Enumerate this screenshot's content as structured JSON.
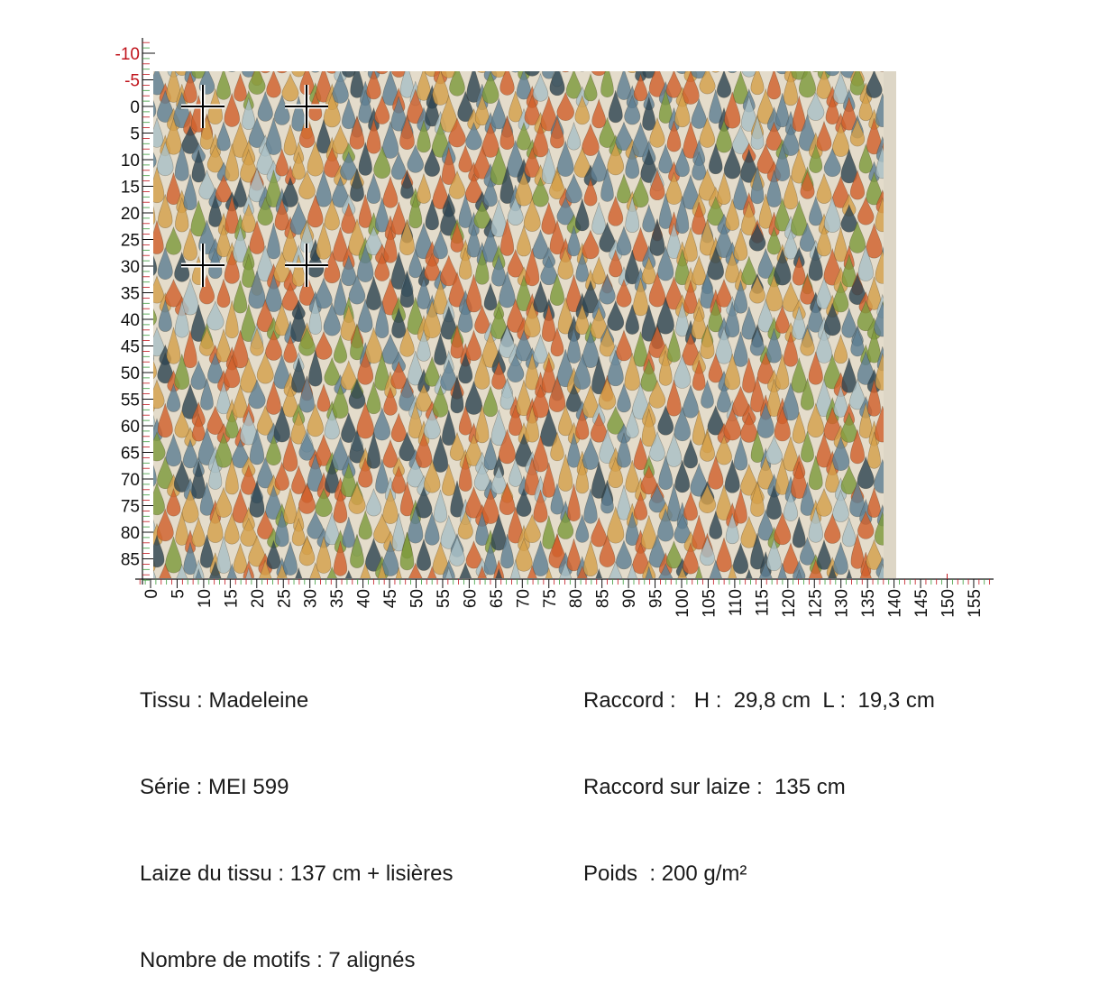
{
  "specs_left": {
    "tissu": "Tissu : Madeleine",
    "serie": "Série : MEI 599",
    "laize": "Laize du tissu : 137 cm + lisières",
    "motifs": "Nombre de motifs : 7 alignés"
  },
  "specs_right": {
    "raccord": "Raccord :   H :  29,8 cm  L :  19,3 cm",
    "raccord_laize": "Raccord sur laize :  135 cm",
    "poids": "Poids  : 200 g/m²"
  },
  "ruler_vertical": {
    "labels": [
      "-10",
      "-5",
      "0",
      "5",
      "10",
      "15",
      "20",
      "25",
      "30",
      "35",
      "40",
      "45",
      "50",
      "55",
      "60",
      "65",
      "70",
      "75",
      "80",
      "85"
    ],
    "negative_color": "#c0141c",
    "positive_color": "#111111"
  },
  "ruler_horizontal": {
    "labels": [
      "0",
      "5",
      "10",
      "15",
      "20",
      "25",
      "30",
      "35",
      "40",
      "45",
      "50",
      "55",
      "60",
      "65",
      "70",
      "75",
      "80",
      "85",
      "90",
      "95",
      "100",
      "105",
      "110",
      "115",
      "120",
      "125",
      "130",
      "135",
      "140",
      "145",
      "150",
      "155"
    ]
  },
  "fabric_colors": {
    "background": "#e4dccb",
    "slate_blue": "#5f7f93",
    "navy": "#2f4552",
    "orange": "#d1602c",
    "ochre": "#d4a04a",
    "olive": "#7e9a3c",
    "pale_blue": "#a9bfc6"
  },
  "repeat_markers": {
    "count": 4,
    "icon": "crosshair-icon"
  }
}
